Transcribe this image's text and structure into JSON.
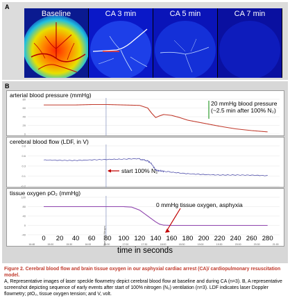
{
  "panel_a": {
    "letter": "A",
    "images": [
      {
        "title": "Baseline",
        "color": "#e03a1a"
      },
      {
        "title": "CA 3 min",
        "color": "#1a3ae0"
      },
      {
        "title": "CA 5 min",
        "color": "#1630d0"
      },
      {
        "title": "CA 7 min",
        "color": "#1020b8"
      }
    ]
  },
  "panel_b": {
    "letter": "B",
    "traces": [
      {
        "title": "arterial blood pressure (mmHg)",
        "color": "#c0392b"
      },
      {
        "title": "cerebral blood flow (LDF, in V)",
        "color": "#3a3aa0"
      },
      {
        "title": "tissue oxygen pO₂ (mmHg)",
        "color": "#8e44ad"
      }
    ],
    "annotations": {
      "bp_line1": "20 mmHg blood pressure",
      "bp_line2": "(~2.5 min after 100% N₂)",
      "start": "start 100% N₂",
      "asphyxia": "0 mmHg tissue oxygen, asphyxia"
    },
    "event_marker": "Start 100% Nitrogen",
    "x_ticks": [
      "0",
      "20",
      "40",
      "60",
      "80",
      "100",
      "120",
      "140",
      "160",
      "180",
      "200",
      "220",
      "240",
      "260",
      "280"
    ],
    "time_ticks": [
      "16:48",
      "15:00",
      "15:30",
      "16:00",
      "16:30",
      "17:00",
      "17:30",
      "18:00",
      "18:30",
      "19:00",
      "19:30",
      "20:00",
      "20:30",
      "21:00"
    ],
    "x_axis_label": "time in seconds"
  },
  "caption": {
    "title": "Figure 2.  Cerebral blood flow and brain tissue oxygen in our asphyxial cardiac arrest (CA)/ cardiopulmonary resuscitation model.",
    "body": "A, Representative images of laser speckle flowmetry depict cerebral blood flow at baseline and during CA (n=3). B, A representative screenshot depicting sequence of early events after start of 100% nitrogen (N₂) ventilation (n=3). LDF indicates laser Doppler flowmetry; ptO₂, tissue oxygen tension; and V, volt."
  },
  "chart_data": [
    {
      "type": "line",
      "title": "arterial blood pressure (mmHg)",
      "x": [
        0,
        20,
        40,
        60,
        80,
        100,
        120,
        130,
        135,
        140,
        145,
        150,
        160,
        170,
        180,
        200,
        220,
        240,
        260,
        280
      ],
      "series": [
        {
          "values": [
            67,
            67,
            67,
            68,
            68,
            67,
            66,
            60,
            48,
            38,
            42,
            45,
            43,
            38,
            32,
            25,
            18,
            12,
            8,
            5
          ]
        }
      ],
      "ylim": [
        0,
        80
      ]
    },
    {
      "type": "line",
      "title": "cerebral blood flow (LDF, in V)",
      "x": [
        0,
        20,
        40,
        60,
        80,
        100,
        120,
        130,
        135,
        140,
        145,
        150,
        160,
        180,
        200,
        220,
        240,
        260,
        280
      ],
      "series": [
        {
          "values": [
            0.45,
            0.45,
            0.45,
            0.46,
            0.46,
            0.46,
            0.47,
            0.43,
            0.35,
            0.2,
            0.18,
            0.17,
            0.15,
            0.12,
            0.1,
            0.08,
            0.07,
            0.06,
            0.05
          ]
        }
      ],
      "ylim": [
        -0.2,
        0.8
      ]
    },
    {
      "type": "line",
      "title": "tissue oxygen pO₂ (mmHg)",
      "x": [
        0,
        20,
        40,
        60,
        80,
        100,
        110,
        120,
        130,
        140,
        145,
        150,
        160,
        180,
        200,
        220,
        240,
        260,
        280
      ],
      "series": [
        {
          "values": [
            80,
            80,
            80,
            80,
            80,
            80,
            78,
            65,
            40,
            15,
            5,
            1,
            0,
            0,
            0,
            0,
            0,
            0,
            0
          ]
        }
      ],
      "ylim": [
        -40,
        120
      ]
    }
  ]
}
